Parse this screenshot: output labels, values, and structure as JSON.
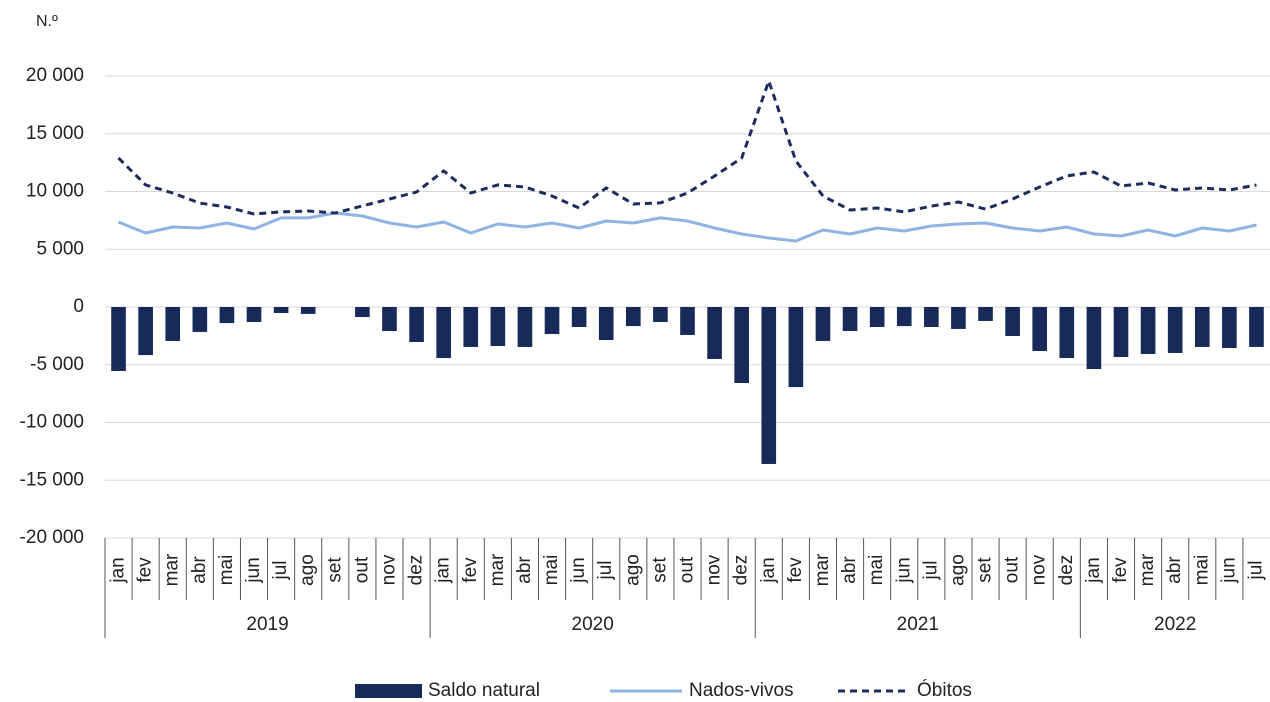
{
  "chart_data": {
    "type": "bar-line",
    "y_label": "N.º",
    "categories": [
      "jan",
      "fev",
      "mar",
      "abr",
      "mai",
      "jun",
      "jul",
      "ago",
      "set",
      "out",
      "nov",
      "dez",
      "jan",
      "fev",
      "mar",
      "abr",
      "mai",
      "jun",
      "jul",
      "ago",
      "set",
      "out",
      "nov",
      "dez",
      "jan",
      "fev",
      "mar",
      "abr",
      "mai",
      "jun",
      "jul",
      "ago",
      "set",
      "out",
      "nov",
      "dez",
      "jan",
      "fev",
      "mar",
      "abr",
      "mai",
      "jun",
      "jul"
    ],
    "years": [
      "2019",
      "2020",
      "2021",
      "2022"
    ],
    "series": [
      {
        "name": "Saldo natural",
        "kind": "bar",
        "color": "#172a5a",
        "values": [
          -5540,
          -4160,
          -2940,
          -2160,
          -1390,
          -1300,
          -520,
          -600,
          0,
          -870,
          -2080,
          -3030,
          -4420,
          -3460,
          -3380,
          -3460,
          -2340,
          -1730,
          -2860,
          -1650,
          -1300,
          -2420,
          -4500,
          -6580,
          -13590,
          -6930,
          -2940,
          -2080,
          -1730,
          -1650,
          -1730,
          -1900,
          -1210,
          -2510,
          -3810,
          -4420,
          -5370,
          -4330,
          -4070,
          -3980,
          -3460,
          -3550,
          -3460
        ]
      },
      {
        "name": "Nados-vivos",
        "kind": "line",
        "color": "#8eb4e3",
        "values": [
          7360,
          6410,
          6930,
          6840,
          7270,
          6750,
          7710,
          7710,
          8140,
          7880,
          7270,
          6930,
          7360,
          6410,
          7190,
          6930,
          7270,
          6840,
          7450,
          7270,
          7710,
          7450,
          6840,
          6320,
          5970,
          5710,
          6670,
          6320,
          6840,
          6580,
          7010,
          7190,
          7270,
          6840,
          6580,
          6930,
          6320,
          6150,
          6670,
          6150,
          6840,
          6580,
          7100
        ]
      },
      {
        "name": "Óbitos",
        "kind": "dashed",
        "color": "#1c2c5c",
        "values": [
          12900,
          10570,
          9870,
          9000,
          8660,
          8050,
          8230,
          8310,
          8140,
          8750,
          9350,
          9960,
          11780,
          9870,
          10570,
          10390,
          9610,
          8570,
          10310,
          8920,
          9010,
          9870,
          11340,
          12900,
          19560,
          12640,
          9610,
          8400,
          8570,
          8230,
          8740,
          9090,
          8480,
          9350,
          10390,
          11350,
          11690,
          10480,
          10740,
          10130,
          10300,
          10130,
          10560
        ]
      }
    ],
    "ylim": [
      -20000,
      20000
    ],
    "yticks": [
      {
        "value": -20000,
        "label": "-20 000"
      },
      {
        "value": -15000,
        "label": "-15 000"
      },
      {
        "value": -10000,
        "label": "-10 000"
      },
      {
        "value": -5000,
        "label": "-5 000"
      },
      0,
      {
        "value": 5000,
        "label": "5 000"
      },
      {
        "value": 10000,
        "label": "10 000"
      },
      {
        "value": 15000,
        "label": "15 000"
      },
      {
        "value": 20000,
        "label": "20 000"
      }
    ],
    "grid": true
  }
}
